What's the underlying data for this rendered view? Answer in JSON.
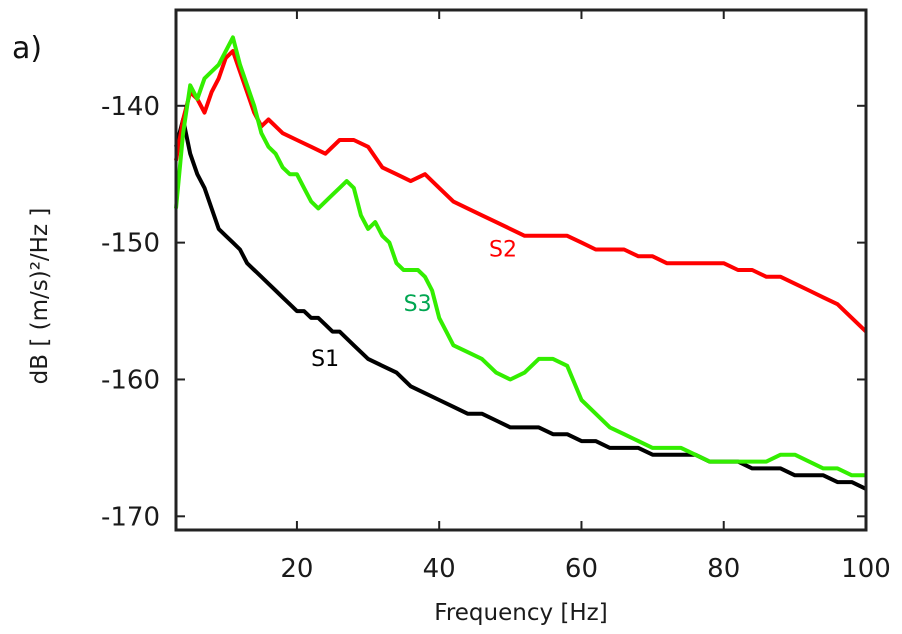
{
  "chart_data": {
    "type": "line",
    "panel_label": "a)",
    "xlabel": "Frequency [Hz]",
    "ylabel": "dB [ (m/s)²/Hz ]",
    "xlim": [
      3,
      100
    ],
    "ylim": [
      -171,
      -133
    ],
    "xticks": [
      20,
      40,
      60,
      80,
      100
    ],
    "yticks": [
      -140,
      -150,
      -160,
      -170
    ],
    "grid": false,
    "series": [
      {
        "name": "S1",
        "color": "#000000",
        "label_pos": [
          22,
          -159
        ],
        "x": [
          3,
          4,
          5,
          6,
          7,
          8,
          9,
          10,
          11,
          12,
          13,
          14,
          15,
          16,
          17,
          18,
          19,
          20,
          21,
          22,
          23,
          24,
          25,
          26,
          27,
          28,
          29,
          30,
          32,
          34,
          36,
          38,
          40,
          42,
          44,
          46,
          48,
          50,
          52,
          54,
          56,
          58,
          60,
          62,
          64,
          66,
          68,
          70,
          72,
          74,
          76,
          78,
          80,
          82,
          84,
          86,
          88,
          90,
          92,
          94,
          96,
          98,
          100
        ],
        "y": [
          -143,
          -141,
          -143.5,
          -145,
          -146,
          -147.5,
          -149,
          -149.5,
          -150,
          -150.5,
          -151.5,
          -152,
          -152.5,
          -153,
          -153.5,
          -154,
          -154.5,
          -155,
          -155,
          -155.5,
          -155.5,
          -156,
          -156.5,
          -156.5,
          -157,
          -157.5,
          -158,
          -158.5,
          -159,
          -159.5,
          -160.5,
          -161,
          -161.5,
          -162,
          -162.5,
          -162.5,
          -163,
          -163.5,
          -163.5,
          -163.5,
          -164,
          -164,
          -164.5,
          -164.5,
          -165,
          -165,
          -165,
          -165.5,
          -165.5,
          -165.5,
          -165.5,
          -166,
          -166,
          -166,
          -166.5,
          -166.5,
          -166.5,
          -167,
          -167,
          -167,
          -167.5,
          -167.5,
          -168
        ]
      },
      {
        "name": "S2",
        "color": "#ff0000",
        "label_pos": [
          47,
          -151
        ],
        "x": [
          3,
          4,
          5,
          6,
          7,
          8,
          9,
          10,
          11,
          12,
          13,
          14,
          15,
          16,
          18,
          20,
          22,
          24,
          26,
          28,
          30,
          32,
          34,
          36,
          38,
          40,
          42,
          44,
          46,
          48,
          50,
          52,
          54,
          56,
          58,
          60,
          62,
          64,
          66,
          68,
          70,
          72,
          74,
          76,
          78,
          80,
          82,
          84,
          86,
          88,
          90,
          92,
          94,
          96,
          98,
          100
        ],
        "y": [
          -144,
          -141,
          -139,
          -139.5,
          -140.5,
          -139,
          -138,
          -136.5,
          -136,
          -137.5,
          -139,
          -140.5,
          -141.5,
          -141,
          -142,
          -142.5,
          -143,
          -143.5,
          -142.5,
          -142.5,
          -143,
          -144.5,
          -145,
          -145.5,
          -145,
          -146,
          -147,
          -147.5,
          -148,
          -148.5,
          -149,
          -149.5,
          -149.5,
          -149.5,
          -149.5,
          -150,
          -150.5,
          -150.5,
          -150.5,
          -151,
          -151,
          -151.5,
          -151.5,
          -151.5,
          -151.5,
          -151.5,
          -152,
          -152,
          -152.5,
          -152.5,
          -153,
          -153.5,
          -154,
          -154.5,
          -155.5,
          -156.5
        ]
      },
      {
        "name": "S3",
        "color": "#33ee00",
        "label_color": "#00a651",
        "label_pos": [
          35,
          -155
        ],
        "x": [
          3,
          4,
          5,
          6,
          7,
          8,
          9,
          10,
          11,
          12,
          13,
          14,
          15,
          16,
          17,
          18,
          19,
          20,
          21,
          22,
          23,
          24,
          25,
          26,
          27,
          28,
          29,
          30,
          31,
          32,
          33,
          34,
          35,
          36,
          37,
          38,
          39,
          40,
          41,
          42,
          44,
          46,
          48,
          50,
          52,
          54,
          56,
          58,
          60,
          62,
          64,
          66,
          68,
          70,
          72,
          74,
          76,
          78,
          80,
          82,
          84,
          86,
          88,
          90,
          92,
          94,
          96,
          98,
          100
        ],
        "y": [
          -147.5,
          -142,
          -138.5,
          -139.5,
          -138,
          -137.5,
          -137,
          -136,
          -135,
          -137,
          -138.5,
          -140,
          -142,
          -143,
          -143.5,
          -144.5,
          -145,
          -145,
          -146,
          -147,
          -147.5,
          -147,
          -146.5,
          -146,
          -145.5,
          -146,
          -148,
          -149,
          -148.5,
          -149.5,
          -150,
          -151.5,
          -152,
          -152,
          -152,
          -152.5,
          -153.5,
          -155.5,
          -156.5,
          -157.5,
          -158,
          -158.5,
          -159.5,
          -160,
          -159.5,
          -158.5,
          -158.5,
          -159,
          -161.5,
          -162.5,
          -163.5,
          -164,
          -164.5,
          -165,
          -165,
          -165,
          -165.5,
          -166,
          -166,
          -166,
          -166,
          -166,
          -165.5,
          -165.5,
          -166,
          -166.5,
          -166.5,
          -167,
          -167
        ]
      }
    ]
  }
}
